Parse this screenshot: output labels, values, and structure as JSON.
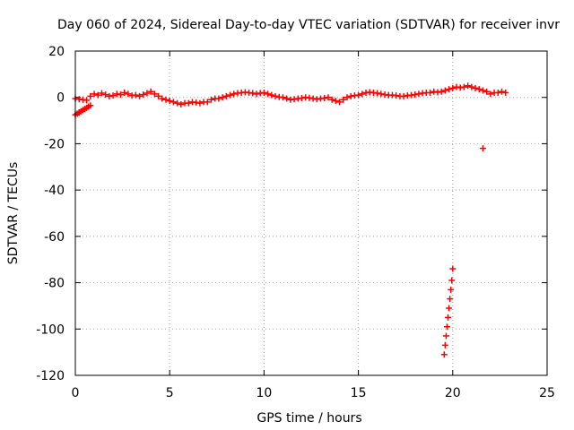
{
  "chart_data": {
    "type": "scatter",
    "title": "Day 060 of 2024, Sidereal Day-to-day VTEC variation (SDTVAR) for receiver invr",
    "xlabel": "GPS time / hours",
    "ylabel": "SDTVAR / TECUs",
    "xlim": [
      0,
      25
    ],
    "ylim": [
      -120,
      20
    ],
    "xticks": [
      0,
      5,
      10,
      15,
      20,
      25
    ],
    "yticks": [
      20,
      0,
      -20,
      -40,
      -60,
      -80,
      -100,
      -120
    ],
    "grid": true,
    "marker": "plus",
    "color": "#ff0000",
    "series": [
      {
        "name": "SDTVAR",
        "x": [
          0.0,
          0.1,
          0.2,
          0.3,
          0.4,
          0.5,
          0.6,
          0.7,
          0.8,
          0.0,
          0.2,
          0.4,
          0.6,
          0.8,
          1.0,
          1.2,
          1.4,
          1.6,
          1.8,
          2.0,
          2.2,
          2.4,
          2.6,
          2.8,
          3.0,
          3.2,
          3.4,
          3.6,
          3.8,
          4.0,
          4.2,
          4.4,
          4.6,
          4.8,
          5.0,
          5.2,
          5.4,
          5.6,
          5.8,
          6.0,
          6.2,
          6.4,
          6.6,
          6.8,
          7.0,
          7.2,
          7.4,
          7.6,
          7.8,
          8.0,
          8.2,
          8.4,
          8.6,
          8.8,
          9.0,
          9.2,
          9.4,
          9.6,
          9.8,
          10.0,
          10.2,
          10.4,
          10.6,
          10.8,
          11.0,
          11.2,
          11.4,
          11.6,
          11.8,
          12.0,
          12.2,
          12.4,
          12.6,
          12.8,
          13.0,
          13.2,
          13.4,
          13.6,
          13.8,
          14.0,
          14.2,
          14.4,
          14.6,
          14.8,
          15.0,
          15.2,
          15.4,
          15.6,
          15.8,
          16.0,
          16.2,
          16.4,
          16.6,
          16.8,
          17.0,
          17.2,
          17.4,
          17.6,
          17.8,
          18.0,
          18.2,
          18.4,
          18.6,
          18.8,
          19.0,
          19.2,
          19.4,
          19.6,
          19.8,
          20.0,
          20.2,
          20.4,
          20.6,
          20.8,
          21.0,
          21.2,
          21.4,
          21.6,
          21.8,
          22.0,
          22.2,
          22.4,
          22.6,
          22.8,
          19.55,
          19.6,
          19.65,
          19.7,
          19.75,
          19.8,
          19.85,
          19.9,
          19.95,
          20.0,
          21.6
        ],
        "y": [
          -7.5,
          -7.0,
          -6.5,
          -6.0,
          -5.5,
          -5.0,
          -4.5,
          -4.0,
          -3.5,
          -0.5,
          -0.8,
          -1.0,
          -1.2,
          0.5,
          1.5,
          1.0,
          1.8,
          1.2,
          0.5,
          0.8,
          1.5,
          1.2,
          2.0,
          1.5,
          0.8,
          1.0,
          0.5,
          1.2,
          1.8,
          2.5,
          1.5,
          0.5,
          -0.5,
          -1.0,
          -1.5,
          -2.0,
          -2.5,
          -3.0,
          -2.5,
          -2.5,
          -2.0,
          -2.2,
          -2.5,
          -2.0,
          -2.0,
          -1.0,
          -0.5,
          -0.5,
          0.0,
          0.5,
          1.0,
          1.5,
          1.8,
          2.0,
          2.2,
          2.0,
          1.8,
          1.5,
          1.8,
          2.0,
          1.5,
          1.0,
          0.5,
          0.2,
          0.0,
          -0.5,
          -1.0,
          -0.8,
          -0.5,
          -0.3,
          0.0,
          -0.2,
          -0.5,
          -0.8,
          -0.5,
          -0.3,
          0.0,
          -1.0,
          -1.5,
          -2.0,
          -1.0,
          0.0,
          0.5,
          0.8,
          1.0,
          1.5,
          2.0,
          2.2,
          2.0,
          1.8,
          1.5,
          1.2,
          1.0,
          1.0,
          0.8,
          0.5,
          0.5,
          0.8,
          1.0,
          1.2,
          1.5,
          1.8,
          2.0,
          2.0,
          2.5,
          2.2,
          2.5,
          3.0,
          3.5,
          4.0,
          4.5,
          4.2,
          4.5,
          5.0,
          4.5,
          4.0,
          3.5,
          3.0,
          2.5,
          1.5,
          2.0,
          2.0,
          2.5,
          2.0,
          -111,
          -107,
          -103,
          -99,
          -95,
          -91,
          -87,
          -83,
          -79,
          -74,
          -22
        ]
      }
    ]
  }
}
